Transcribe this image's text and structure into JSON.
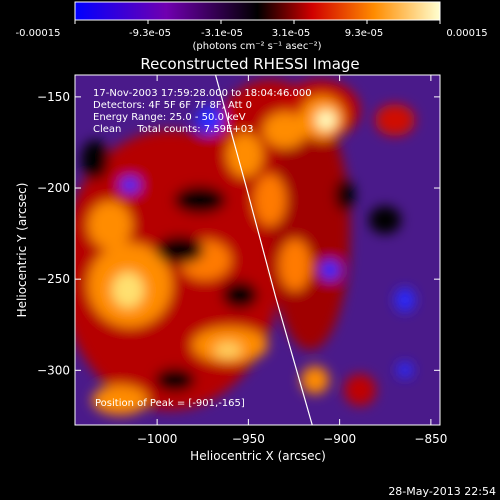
{
  "colorbar": {
    "tick_labels": [
      "-0.00015",
      "-9.3e-05",
      "-3.1e-05",
      "3.1e-05",
      "9.3e-05",
      "0.00015"
    ],
    "unit_label": "(photons cm⁻² s⁻¹ asec⁻²)",
    "vmin": -0.00015,
    "vmax": 0.00015
  },
  "chart_data": {
    "type": "heatmap",
    "title": "Reconstructed RHESSI Image",
    "xlabel": "Heliocentric X (arcsec)",
    "ylabel": "Heliocentric Y (arcsec)",
    "xlim": [
      -1045,
      -845
    ],
    "ylim": [
      -330,
      -138
    ],
    "xticks": [
      -1000,
      -950,
      -900,
      -850
    ],
    "xtick_labels": [
      "−1000",
      "−950",
      "−900",
      "−850"
    ],
    "yticks": [
      -150,
      -200,
      -250,
      -300
    ],
    "ytick_labels": [
      "−150",
      "−200",
      "−250",
      "−300"
    ],
    "annotations": [
      "17-Nov-2003 17:59:28.000 to 18:04:46.000",
      "Detectors: 4F 5F 6F 7F 8F, Att 0",
      "Energy Range: 25.0 - 50.0 keV",
      "Clean     Total counts: 7.59E+03"
    ],
    "peak_label": "Position of Peak = [-901,-165]",
    "limb": [
      [
        -968,
        -138
      ],
      [
        -951,
        -200
      ],
      [
        -935,
        -260
      ],
      [
        -915,
        -330
      ]
    ],
    "peak": [
      -901,
      -165
    ]
  },
  "footer": {
    "timestamp": "28-May-2013 22:54"
  }
}
